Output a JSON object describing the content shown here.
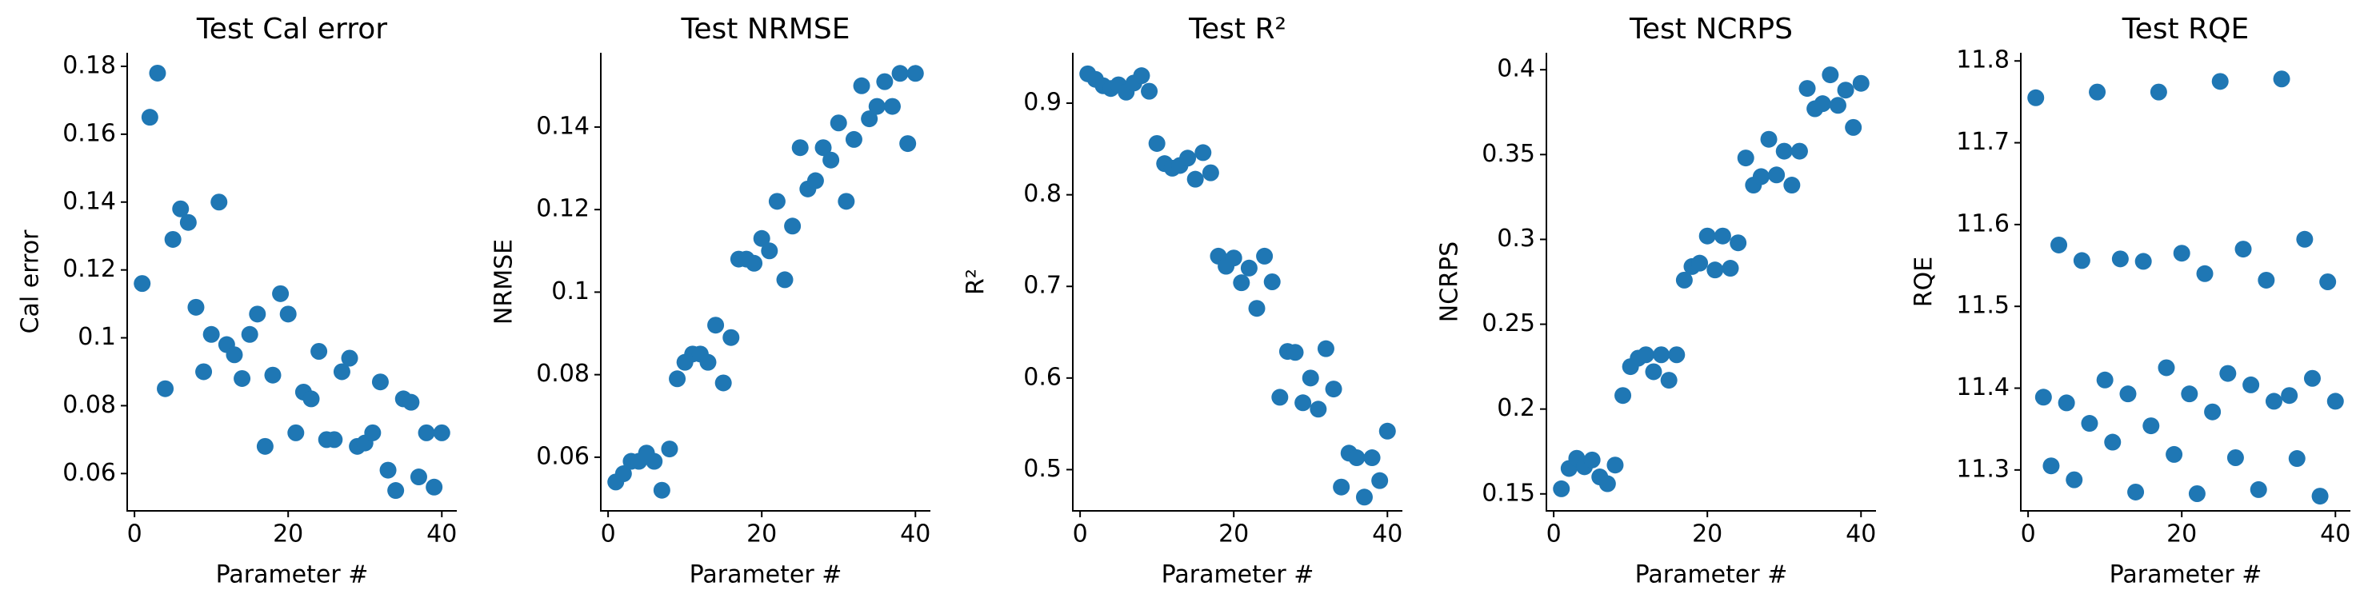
{
  "chart_data": [
    {
      "type": "scatter",
      "title": "Test Cal error",
      "x_label": "Parameter #",
      "y_label": "Cal error",
      "color": "#1f77b4",
      "x": [
        1,
        2,
        3,
        4,
        5,
        6,
        7,
        8,
        9,
        10,
        11,
        12,
        13,
        14,
        15,
        16,
        17,
        18,
        19,
        20,
        21,
        22,
        23,
        24,
        25,
        26,
        27,
        28,
        29,
        30,
        31,
        32,
        33,
        34,
        35,
        36,
        37,
        38,
        39,
        40
      ],
      "values": [
        0.116,
        0.165,
        0.178,
        0.085,
        0.129,
        0.138,
        0.134,
        0.109,
        0.09,
        0.101,
        0.14,
        0.098,
        0.095,
        0.088,
        0.101,
        0.107,
        0.068,
        0.089,
        0.113,
        0.107,
        0.072,
        0.084,
        0.082,
        0.096,
        0.07,
        0.07,
        0.09,
        0.094,
        0.068,
        0.069,
        0.072,
        0.087,
        0.061,
        0.055,
        0.082,
        0.081,
        0.059,
        0.072,
        0.056,
        0.072
      ],
      "xlim": [
        -0.95,
        41.95
      ],
      "xticks": [
        0,
        20,
        40
      ],
      "ylim": [
        0.049,
        0.184
      ],
      "yticks": [
        0.06,
        0.08,
        0.1,
        0.12,
        0.14,
        0.16,
        0.18
      ]
    },
    {
      "type": "scatter",
      "title": "Test NRMSE",
      "x_label": "Parameter #",
      "y_label": "NRMSE",
      "color": "#1f77b4",
      "x": [
        1,
        2,
        3,
        4,
        5,
        6,
        7,
        8,
        9,
        10,
        11,
        12,
        13,
        14,
        15,
        16,
        17,
        18,
        19,
        20,
        21,
        22,
        23,
        24,
        25,
        26,
        27,
        28,
        29,
        30,
        31,
        32,
        33,
        34,
        35,
        36,
        37,
        38,
        39,
        40
      ],
      "values": [
        0.054,
        0.056,
        0.059,
        0.059,
        0.061,
        0.059,
        0.052,
        0.062,
        0.079,
        0.083,
        0.085,
        0.085,
        0.083,
        0.092,
        0.078,
        0.089,
        0.108,
        0.108,
        0.107,
        0.113,
        0.11,
        0.122,
        0.103,
        0.116,
        0.135,
        0.125,
        0.127,
        0.135,
        0.132,
        0.141,
        0.122,
        0.137,
        0.15,
        0.142,
        0.145,
        0.151,
        0.145,
        0.153,
        0.136,
        0.153
      ],
      "xlim": [
        -0.95,
        41.95
      ],
      "xticks": [
        0,
        20,
        40
      ],
      "ylim": [
        0.047,
        0.158
      ],
      "yticks": [
        0.06,
        0.08,
        0.1,
        0.12,
        0.14
      ]
    },
    {
      "type": "scatter",
      "title": "Test R²",
      "x_label": "Parameter #",
      "y_label": "R²",
      "color": "#1f77b4",
      "x": [
        1,
        2,
        3,
        4,
        5,
        6,
        7,
        8,
        9,
        10,
        11,
        12,
        13,
        14,
        15,
        16,
        17,
        18,
        19,
        20,
        21,
        22,
        23,
        24,
        25,
        26,
        27,
        28,
        29,
        30,
        31,
        32,
        33,
        34,
        35,
        36,
        37,
        38,
        39,
        40
      ],
      "values": [
        0.932,
        0.926,
        0.919,
        0.916,
        0.92,
        0.912,
        0.922,
        0.93,
        0.913,
        0.856,
        0.834,
        0.829,
        0.832,
        0.84,
        0.817,
        0.846,
        0.824,
        0.733,
        0.722,
        0.731,
        0.704,
        0.72,
        0.676,
        0.733,
        0.705,
        0.579,
        0.629,
        0.628,
        0.573,
        0.6,
        0.566,
        0.632,
        0.588,
        0.481,
        0.518,
        0.513,
        0.47,
        0.513,
        0.488,
        0.542
      ],
      "xlim": [
        -0.95,
        41.95
      ],
      "xticks": [
        0,
        20,
        40
      ],
      "ylim": [
        0.455,
        0.955
      ],
      "yticks": [
        0.5,
        0.6,
        0.7,
        0.8,
        0.9
      ]
    },
    {
      "type": "scatter",
      "title": "Test NCRPS",
      "x_label": "Parameter #",
      "y_label": "NCRPS",
      "color": "#1f77b4",
      "x": [
        1,
        2,
        3,
        4,
        5,
        6,
        7,
        8,
        9,
        10,
        11,
        12,
        13,
        14,
        15,
        16,
        17,
        18,
        19,
        20,
        21,
        22,
        23,
        24,
        25,
        26,
        27,
        28,
        29,
        30,
        31,
        32,
        33,
        34,
        35,
        36,
        37,
        38,
        39,
        40
      ],
      "values": [
        0.153,
        0.165,
        0.171,
        0.166,
        0.17,
        0.16,
        0.156,
        0.167,
        0.208,
        0.225,
        0.23,
        0.232,
        0.222,
        0.232,
        0.217,
        0.232,
        0.276,
        0.284,
        0.286,
        0.302,
        0.282,
        0.302,
        0.283,
        0.298,
        0.348,
        0.332,
        0.337,
        0.359,
        0.338,
        0.352,
        0.332,
        0.352,
        0.389,
        0.377,
        0.38,
        0.397,
        0.379,
        0.388,
        0.366,
        0.392
      ],
      "xlim": [
        -0.95,
        41.95
      ],
      "xticks": [
        0,
        20,
        40
      ],
      "ylim": [
        0.14,
        0.41
      ],
      "yticks": [
        0.15,
        0.2,
        0.25,
        0.3,
        0.35,
        0.4
      ]
    },
    {
      "type": "scatter",
      "title": "Test RQE",
      "x_label": "Parameter #",
      "y_label": "RQE",
      "color": "#1f77b4",
      "x": [
        1,
        2,
        3,
        4,
        5,
        6,
        7,
        8,
        9,
        10,
        11,
        12,
        13,
        14,
        15,
        16,
        17,
        18,
        19,
        20,
        21,
        22,
        23,
        24,
        25,
        26,
        27,
        28,
        29,
        30,
        31,
        32,
        33,
        34,
        35,
        36,
        37,
        38,
        39,
        40
      ],
      "values": [
        11.755,
        11.389,
        11.305,
        11.575,
        11.382,
        11.288,
        11.556,
        11.357,
        11.762,
        11.41,
        11.334,
        11.558,
        11.393,
        11.273,
        11.555,
        11.354,
        11.762,
        11.425,
        11.319,
        11.565,
        11.393,
        11.271,
        11.54,
        11.371,
        11.775,
        11.418,
        11.315,
        11.57,
        11.404,
        11.276,
        11.532,
        11.384,
        11.778,
        11.391,
        11.314,
        11.582,
        11.412,
        11.268,
        11.53,
        11.384
      ],
      "xlim": [
        -0.95,
        41.95
      ],
      "xticks": [
        0,
        20,
        40
      ],
      "ylim": [
        11.25,
        11.81
      ],
      "yticks": [
        11.3,
        11.4,
        11.5,
        11.6,
        11.7,
        11.8
      ]
    }
  ]
}
